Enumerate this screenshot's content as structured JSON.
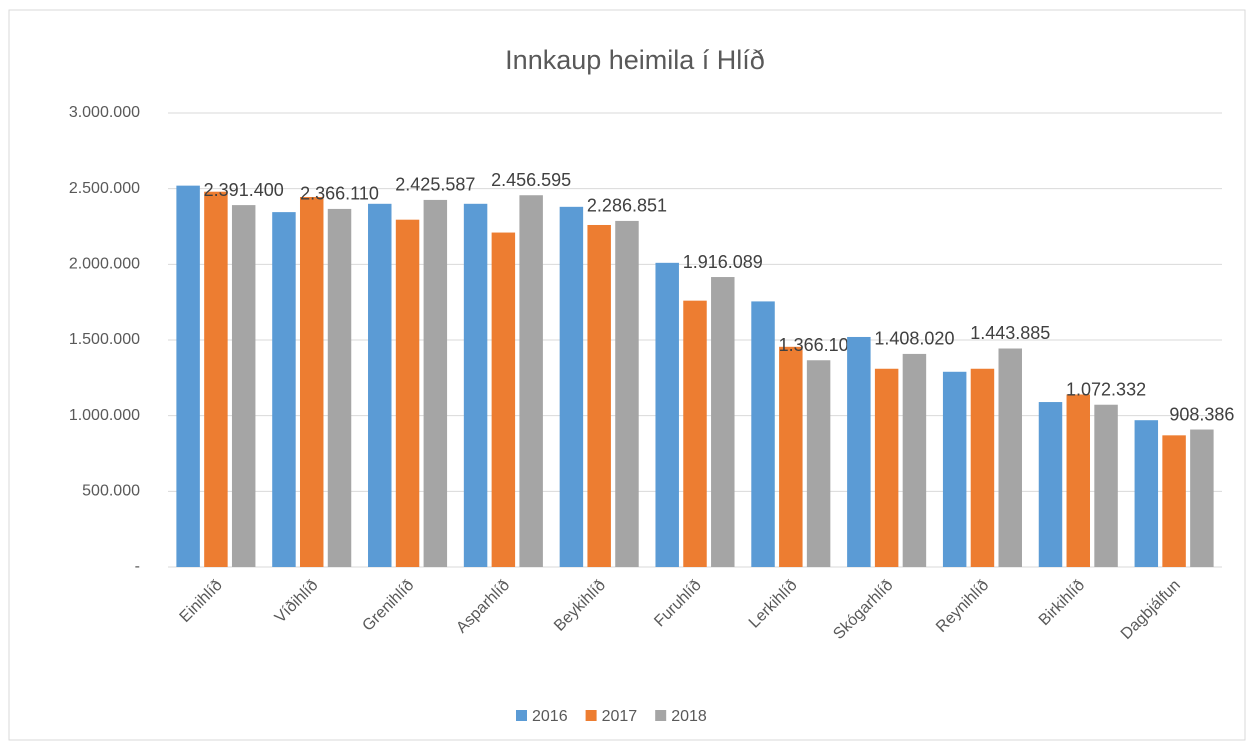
{
  "chart_data": {
    "type": "bar",
    "title": "Innkaup heimila í Hlíð",
    "categories": [
      "Einihlíð",
      "Víðihlíð",
      "Grenihlíð",
      "Asparhlíð",
      "Beykihlíð",
      "Furuhlíð",
      "Lerkihlíð",
      "Skógarhlíð",
      "Reynihlíð",
      "Birkihlíð",
      "Dagbjálfun"
    ],
    "series": [
      {
        "name": "2016",
        "color": "#5b9bd5",
        "values": [
          2520000,
          2345000,
          2400000,
          2400000,
          2380000,
          2010000,
          1755000,
          1520000,
          1290000,
          1090000,
          970000
        ]
      },
      {
        "name": "2017",
        "color": "#ed7d31",
        "values": [
          2480000,
          2445000,
          2295000,
          2210000,
          2260000,
          1760000,
          1455000,
          1310000,
          1310000,
          1140000,
          870000
        ]
      },
      {
        "name": "2018",
        "color": "#a5a5a5",
        "values": [
          2391400,
          2366110,
          2425587,
          2456595,
          2286851,
          1916089,
          1366100,
          1408020,
          1443885,
          1072332,
          908386
        ],
        "value_labels": [
          "2.391.400",
          "2.366.110",
          "2.425.587",
          "2.456.595",
          "2.286.851",
          "1.916.089",
          "1.366.100",
          "1.408.020",
          "1.443.885",
          "1.072.332",
          "908.386"
        ]
      }
    ],
    "ylim": [
      0,
      3000000
    ],
    "yticks": [
      {
        "value": 0,
        "label": "-"
      },
      {
        "value": 500000,
        "label": "500.000"
      },
      {
        "value": 1000000,
        "label": "1.000.000"
      },
      {
        "value": 1500000,
        "label": "1.500.000"
      },
      {
        "value": 2000000,
        "label": "2.000.000"
      },
      {
        "value": 2500000,
        "label": "2.500.000"
      },
      {
        "value": 3000000,
        "label": "3.000.000"
      }
    ],
    "grid": true,
    "legend": "bottom"
  }
}
